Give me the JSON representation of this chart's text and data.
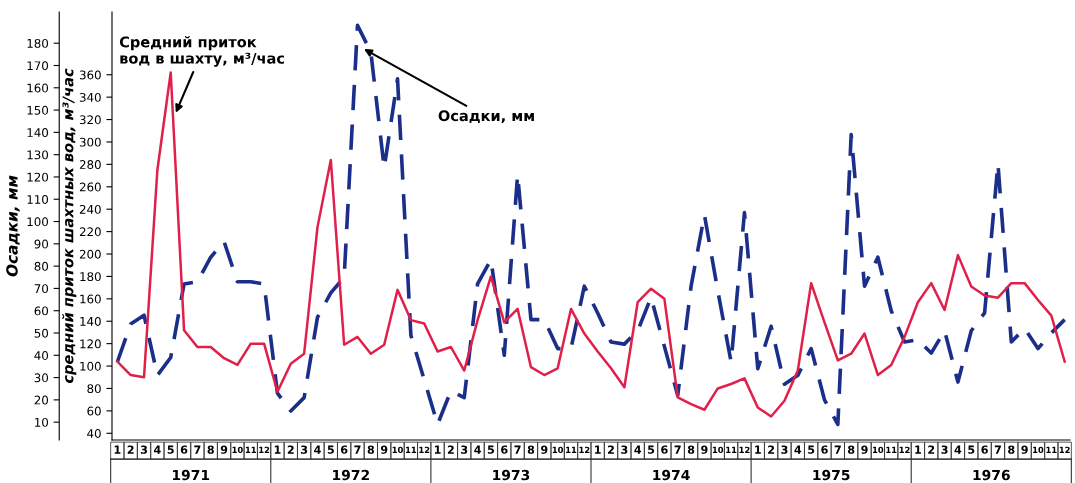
{
  "chart_data": {
    "type": "line",
    "categories": [
      "1",
      "2",
      "3",
      "4",
      "5",
      "6",
      "7",
      "8",
      "9",
      "10",
      "11",
      "12",
      "1",
      "2",
      "3",
      "4",
      "5",
      "6",
      "7",
      "8",
      "9",
      "10",
      "11",
      "12",
      "1",
      "2",
      "3",
      "4",
      "5",
      "6",
      "7",
      "8",
      "9",
      "10",
      "11",
      "12",
      "1",
      "2",
      "3",
      "4",
      "5",
      "6",
      "7",
      "8",
      "9",
      "10",
      "11",
      "12",
      "1",
      "2",
      "3",
      "4",
      "5",
      "6",
      "7",
      "8",
      "9",
      "10",
      "11",
      "12",
      "1",
      "2",
      "3",
      "4",
      "5",
      "6",
      "7",
      "8",
      "9",
      "10",
      "11",
      "12"
    ],
    "ylabel": "Осадки, мм",
    "y2label": "средний приток шахтных вод, м³/час",
    "ylim": [
      2,
      194
    ],
    "yticks": [
      10,
      20,
      30,
      40,
      50,
      60,
      70,
      80,
      90,
      100,
      110,
      120,
      130,
      140,
      150,
      160,
      170,
      180
    ],
    "y2lim": [
      34,
      416
    ],
    "y2ticks": [
      40,
      60,
      80,
      100,
      120,
      140,
      160,
      180,
      200,
      220,
      240,
      260,
      280,
      300,
      320,
      340,
      360
    ],
    "grid": false,
    "annotations": [
      "1971",
      "1972",
      "1973",
      "1974",
      "1975",
      "1976"
    ],
    "series": [
      {
        "name": "Средний приток\nвод в шахту, м³/час",
        "color": "#e0204a",
        "axis": "y2",
        "line_style": "solid",
        "values": [
          104,
          92,
          90,
          275,
          362,
          132,
          117,
          117,
          107,
          101,
          120,
          120,
          77,
          102,
          111,
          224,
          284,
          119,
          126,
          111,
          119,
          168,
          141,
          138,
          113,
          117,
          96,
          141,
          180,
          139,
          151,
          99,
          92,
          98,
          151,
          129,
          113,
          98,
          81,
          157,
          169,
          160,
          72,
          66,
          61,
          80,
          84,
          89,
          63,
          55,
          69,
          96,
          174,
          139,
          105,
          111,
          129,
          92,
          101,
          126,
          157,
          174,
          150,
          199,
          171,
          163,
          161,
          174,
          174,
          159,
          145,
          104
        ]
      },
      {
        "name": "Осадки, мм",
        "color": "#1a2e8a",
        "line_style": "dashed",
        "values": [
          37,
          54,
          58,
          31,
          39,
          72,
          73,
          84,
          91,
          73,
          73,
          72,
          23,
          15,
          21,
          57,
          68,
          75,
          188,
          176,
          124,
          164,
          49,
          29,
          9,
          24,
          21,
          72,
          83,
          40,
          121,
          56,
          56,
          43,
          43,
          71,
          59,
          46,
          45,
          51,
          66,
          44,
          22,
          71,
          103,
          69,
          37,
          104,
          34,
          53,
          27,
          31,
          43,
          20,
          9,
          139,
          71,
          84,
          60,
          46,
          47,
          41,
          51,
          28,
          51,
          59,
          126,
          46,
          52,
          43,
          50,
          56
        ]
      }
    ]
  }
}
